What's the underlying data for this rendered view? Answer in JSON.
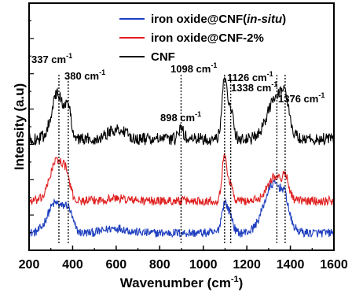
{
  "chart_data": {
    "type": "line",
    "xlabel": "Wavenumber (cm",
    "xlabel_sup": "-1",
    "xlabel_tail": ")",
    "ylabel": "Intensity (a.u)",
    "xlim": [
      200,
      1600
    ],
    "xticks": [
      200,
      400,
      600,
      800,
      1000,
      1200,
      1400,
      1600
    ],
    "yticks_labeled": false,
    "legend_position": "top-right",
    "series": [
      {
        "name": "iron oxide@CNF(in-situ)",
        "name_plain": "iron oxide@CNF(",
        "name_italic": "in-situ",
        "name_close": ")",
        "color": "#1f3fbf",
        "baseline": 0.07,
        "noise": 0.018,
        "peaks": [
          {
            "x": 320,
            "h": 0.12,
            "w": 35
          },
          {
            "x": 380,
            "h": 0.08,
            "w": 20
          },
          {
            "x": 600,
            "h": 0.02,
            "w": 50
          },
          {
            "x": 1098,
            "h": 0.12,
            "w": 14
          },
          {
            "x": 1126,
            "h": 0.06,
            "w": 12
          },
          {
            "x": 1325,
            "h": 0.2,
            "w": 45
          },
          {
            "x": 1376,
            "h": 0.06,
            "w": 15
          }
        ]
      },
      {
        "name": "iron oxide@CNF-2%",
        "color": "#e02020",
        "baseline": 0.2,
        "noise": 0.018,
        "peaks": [
          {
            "x": 325,
            "h": 0.16,
            "w": 30
          },
          {
            "x": 370,
            "h": 0.08,
            "w": 18
          },
          {
            "x": 600,
            "h": 0.01,
            "w": 50
          },
          {
            "x": 1098,
            "h": 0.18,
            "w": 12
          },
          {
            "x": 1126,
            "h": 0.06,
            "w": 10
          },
          {
            "x": 1330,
            "h": 0.1,
            "w": 35
          },
          {
            "x": 1380,
            "h": 0.07,
            "w": 14
          }
        ]
      },
      {
        "name": "CNF",
        "color": "#000000",
        "baseline": 0.45,
        "noise": 0.025,
        "peaks": [
          {
            "x": 330,
            "h": 0.18,
            "w": 28
          },
          {
            "x": 380,
            "h": 0.1,
            "w": 15
          },
          {
            "x": 600,
            "h": 0.04,
            "w": 40
          },
          {
            "x": 898,
            "h": 0.04,
            "w": 12
          },
          {
            "x": 1098,
            "h": 0.24,
            "w": 12
          },
          {
            "x": 1126,
            "h": 0.12,
            "w": 12
          },
          {
            "x": 1338,
            "h": 0.18,
            "w": 40
          },
          {
            "x": 1376,
            "h": 0.08,
            "w": 15
          }
        ]
      }
    ],
    "annotations": [
      {
        "label": "337 cm",
        "sup": "-1",
        "x": 337
      },
      {
        "label": "380 cm",
        "sup": "-1",
        "x": 380
      },
      {
        "label": "898 cm",
        "sup": "-1",
        "x": 898
      },
      {
        "label": "1098 cm",
        "sup": "-1",
        "x": 1098
      },
      {
        "label": "1126 cm",
        "sup": "-1",
        "x": 1126
      },
      {
        "label": "1338 cm",
        "sup": "-1",
        "x": 1338
      },
      {
        "label": "1376 cm",
        "sup": "-1",
        "x": 1376
      }
    ]
  }
}
